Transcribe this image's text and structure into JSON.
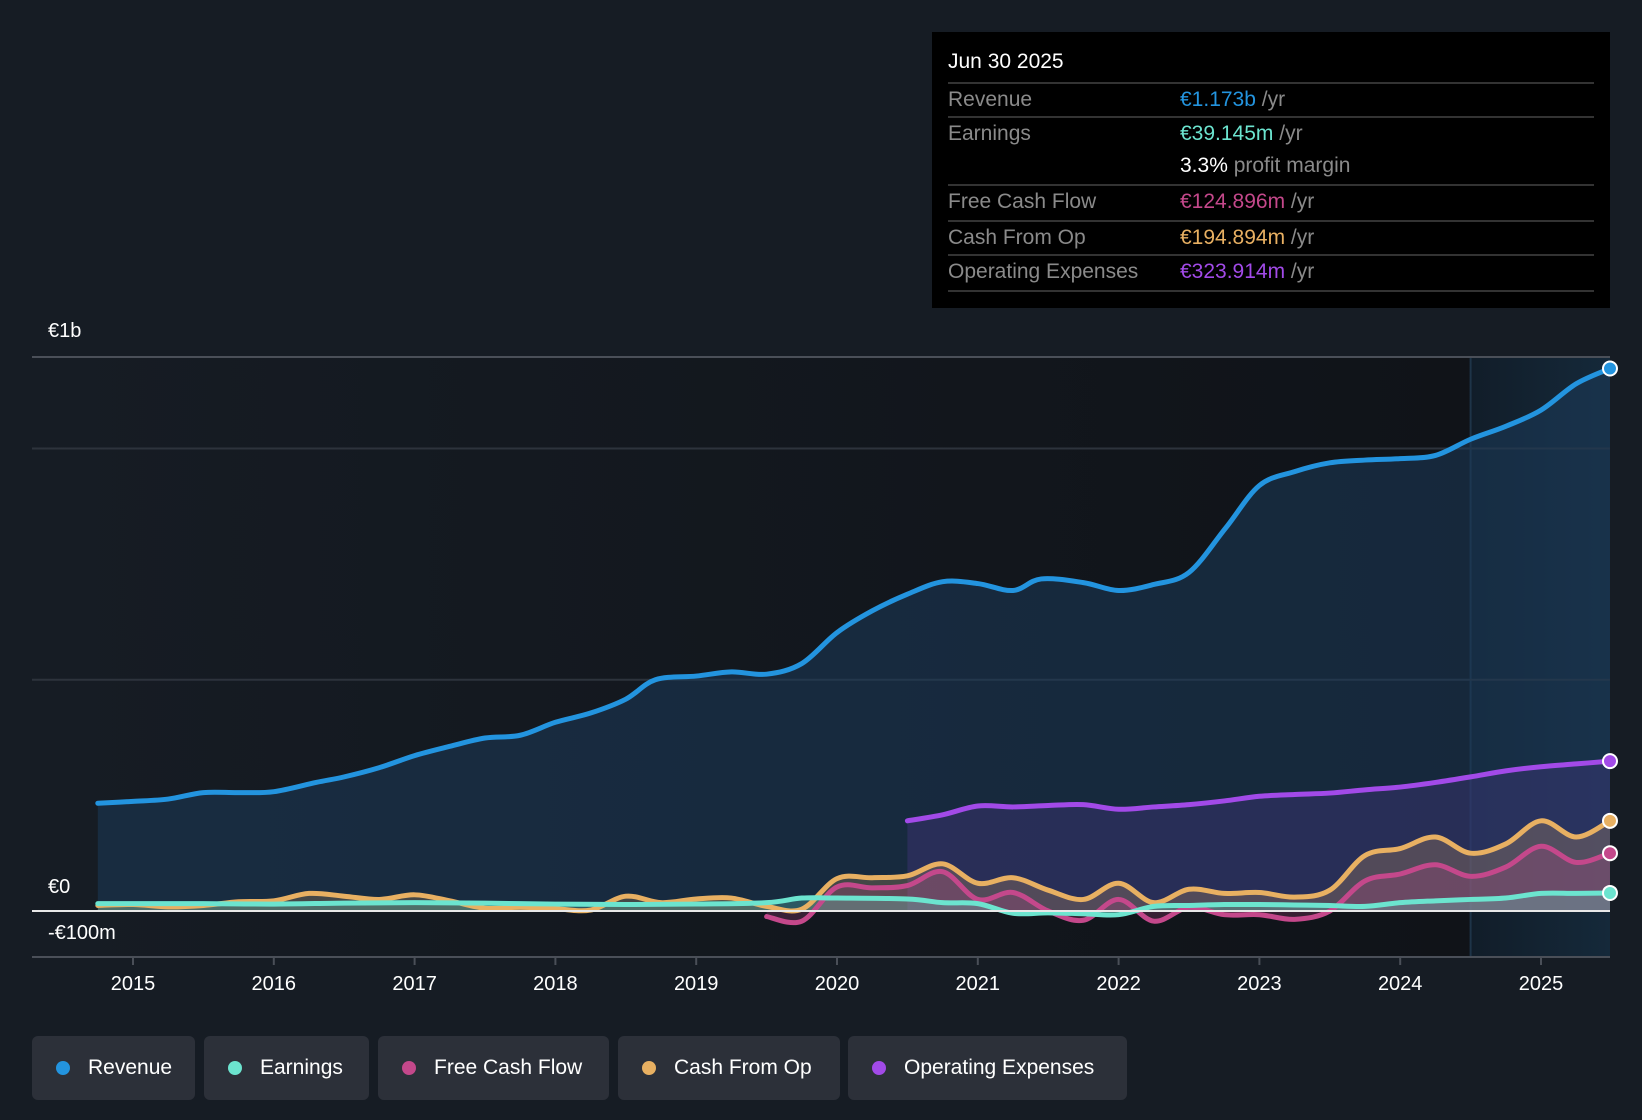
{
  "tooltip": {
    "date": "Jun 30 2025",
    "rows": [
      {
        "label": "Revenue",
        "value": "€1.173b",
        "unit": " /yr",
        "color": "#2394df"
      },
      {
        "label": "Earnings",
        "value": "€39.145m",
        "unit": " /yr",
        "color": "#6ce4cf"
      },
      {
        "label": "",
        "value": "3.3%",
        "unit": " profit margin",
        "color": "#ffffff"
      },
      {
        "label": "Free Cash Flow",
        "value": "€124.896m",
        "unit": " /yr",
        "color": "#c4488b"
      },
      {
        "label": "Cash From Op",
        "value": "€194.894m",
        "unit": " /yr",
        "color": "#e8b062"
      },
      {
        "label": "Operating Expenses",
        "value": "€323.914m",
        "unit": " /yr",
        "color": "#a24ae8"
      }
    ]
  },
  "legend": [
    {
      "label": "Revenue",
      "color": "#2394df"
    },
    {
      "label": "Earnings",
      "color": "#6ce4cf"
    },
    {
      "label": "Free Cash Flow",
      "color": "#c4488b"
    },
    {
      "label": "Cash From Op",
      "color": "#e8b062"
    },
    {
      "label": "Operating Expenses",
      "color": "#a24ae8"
    }
  ],
  "chart_data": {
    "type": "area",
    "title": "",
    "xlabel": "",
    "ylabel": "",
    "y_unit": "€m",
    "ylim": [
      -100,
      1200
    ],
    "xlim": [
      2014.5,
      2025.5
    ],
    "y_tick_labels": [
      {
        "value": 1000,
        "label": "€1b"
      },
      {
        "value": 0,
        "label": "€0"
      },
      {
        "value": -100,
        "label": "-€100m"
      }
    ],
    "x_ticks": [
      2015,
      2016,
      2017,
      2018,
      2019,
      2020,
      2021,
      2022,
      2023,
      2024,
      2025
    ],
    "x_tick_labels": [
      "2015",
      "2016",
      "2017",
      "2018",
      "2019",
      "2020",
      "2021",
      "2022",
      "2023",
      "2024",
      "2025"
    ],
    "gridlines": [
      0,
      500,
      1000,
      1200
    ],
    "highlight_from": 2024.5,
    "legend_position": "bottom",
    "series": [
      {
        "name": "Revenue",
        "color": "#2394df",
        "fill": true,
        "points": [
          [
            2014.75,
            233
          ],
          [
            2015.0,
            237
          ],
          [
            2015.25,
            242
          ],
          [
            2015.5,
            256
          ],
          [
            2015.75,
            256
          ],
          [
            2016.0,
            258
          ],
          [
            2016.3,
            278
          ],
          [
            2016.5,
            290
          ],
          [
            2016.75,
            310
          ],
          [
            2017.0,
            336
          ],
          [
            2017.25,
            356
          ],
          [
            2017.5,
            374
          ],
          [
            2017.75,
            380
          ],
          [
            2018.0,
            408
          ],
          [
            2018.25,
            428
          ],
          [
            2018.5,
            458
          ],
          [
            2018.71,
            500
          ],
          [
            2019.0,
            508
          ],
          [
            2019.25,
            517
          ],
          [
            2019.5,
            512
          ],
          [
            2019.75,
            535
          ],
          [
            2020.0,
            602
          ],
          [
            2020.25,
            649
          ],
          [
            2020.5,
            685
          ],
          [
            2020.75,
            712
          ],
          [
            2021.0,
            708
          ],
          [
            2021.25,
            693
          ],
          [
            2021.45,
            718
          ],
          [
            2021.75,
            710
          ],
          [
            2022.0,
            693
          ],
          [
            2022.25,
            706
          ],
          [
            2022.5,
            732
          ],
          [
            2022.76,
            828
          ],
          [
            2023.0,
            920
          ],
          [
            2023.25,
            950
          ],
          [
            2023.5,
            969
          ],
          [
            2023.75,
            975
          ],
          [
            2024.0,
            978
          ],
          [
            2024.25,
            985
          ],
          [
            2024.5,
            1020
          ],
          [
            2024.75,
            1048
          ],
          [
            2025.0,
            1083
          ],
          [
            2025.25,
            1140
          ],
          [
            2025.49,
            1173
          ]
        ]
      },
      {
        "name": "Operating Expenses",
        "color": "#a24ae8",
        "fill": true,
        "points": [
          [
            2020.5,
            195
          ],
          [
            2020.75,
            208
          ],
          [
            2021.0,
            227
          ],
          [
            2021.25,
            225
          ],
          [
            2021.5,
            228
          ],
          [
            2021.75,
            230
          ],
          [
            2022.0,
            220
          ],
          [
            2022.25,
            225
          ],
          [
            2022.5,
            230
          ],
          [
            2022.75,
            238
          ],
          [
            2023.0,
            248
          ],
          [
            2023.25,
            252
          ],
          [
            2023.5,
            255
          ],
          [
            2023.75,
            262
          ],
          [
            2024.0,
            268
          ],
          [
            2024.25,
            278
          ],
          [
            2024.5,
            290
          ],
          [
            2024.75,
            303
          ],
          [
            2025.0,
            312
          ],
          [
            2025.25,
            318
          ],
          [
            2025.49,
            324
          ]
        ]
      },
      {
        "name": "Cash From Op",
        "color": "#e8b062",
        "fill": true,
        "points": [
          [
            2014.75,
            12
          ],
          [
            2015.0,
            14
          ],
          [
            2015.25,
            9
          ],
          [
            2015.5,
            12
          ],
          [
            2015.75,
            20
          ],
          [
            2016.0,
            22
          ],
          [
            2016.25,
            38
          ],
          [
            2016.5,
            32
          ],
          [
            2016.75,
            25
          ],
          [
            2017.0,
            35
          ],
          [
            2017.25,
            22
          ],
          [
            2017.5,
            6
          ],
          [
            2017.75,
            8
          ],
          [
            2018.0,
            5
          ],
          [
            2018.25,
            2
          ],
          [
            2018.5,
            32
          ],
          [
            2018.75,
            18
          ],
          [
            2019.0,
            26
          ],
          [
            2019.25,
            28
          ],
          [
            2019.5,
            10
          ],
          [
            2019.75,
            4
          ],
          [
            2020.0,
            70
          ],
          [
            2020.25,
            72
          ],
          [
            2020.5,
            76
          ],
          [
            2020.75,
            102
          ],
          [
            2021.0,
            60
          ],
          [
            2021.25,
            72
          ],
          [
            2021.5,
            45
          ],
          [
            2021.75,
            25
          ],
          [
            2022.0,
            60
          ],
          [
            2022.25,
            18
          ],
          [
            2022.5,
            47
          ],
          [
            2022.75,
            38
          ],
          [
            2023.0,
            40
          ],
          [
            2023.25,
            30
          ],
          [
            2023.5,
            45
          ],
          [
            2023.75,
            120
          ],
          [
            2024.0,
            135
          ],
          [
            2024.25,
            160
          ],
          [
            2024.5,
            125
          ],
          [
            2024.75,
            145
          ],
          [
            2025.0,
            195
          ],
          [
            2025.25,
            160
          ],
          [
            2025.49,
            195
          ]
        ]
      },
      {
        "name": "Free Cash Flow",
        "color": "#c4488b",
        "fill": true,
        "points": [
          [
            2019.5,
            -12
          ],
          [
            2019.75,
            -22
          ],
          [
            2020.0,
            52
          ],
          [
            2020.25,
            50
          ],
          [
            2020.5,
            55
          ],
          [
            2020.75,
            85
          ],
          [
            2021.0,
            25
          ],
          [
            2021.25,
            40
          ],
          [
            2021.5,
            0
          ],
          [
            2021.75,
            -20
          ],
          [
            2022.0,
            25
          ],
          [
            2022.25,
            -22
          ],
          [
            2022.5,
            8
          ],
          [
            2022.75,
            -8
          ],
          [
            2023.0,
            -8
          ],
          [
            2023.25,
            -18
          ],
          [
            2023.5,
            0
          ],
          [
            2023.75,
            65
          ],
          [
            2024.0,
            80
          ],
          [
            2024.25,
            100
          ],
          [
            2024.5,
            75
          ],
          [
            2024.75,
            95
          ],
          [
            2025.0,
            140
          ],
          [
            2025.25,
            105
          ],
          [
            2025.49,
            125
          ]
        ]
      },
      {
        "name": "Earnings",
        "color": "#6ce4cf",
        "fill": true,
        "points": [
          [
            2014.75,
            16
          ],
          [
            2015.0,
            16
          ],
          [
            2015.5,
            16
          ],
          [
            2016.0,
            15
          ],
          [
            2016.5,
            17
          ],
          [
            2017.0,
            18
          ],
          [
            2017.5,
            17
          ],
          [
            2018.0,
            15
          ],
          [
            2018.5,
            14
          ],
          [
            2019.0,
            15
          ],
          [
            2019.5,
            18
          ],
          [
            2019.75,
            28
          ],
          [
            2020.0,
            28
          ],
          [
            2020.5,
            26
          ],
          [
            2020.75,
            18
          ],
          [
            2021.0,
            16
          ],
          [
            2021.25,
            -5
          ],
          [
            2021.5,
            -4
          ],
          [
            2021.75,
            -6
          ],
          [
            2022.0,
            -8
          ],
          [
            2022.25,
            10
          ],
          [
            2022.5,
            12
          ],
          [
            2022.75,
            14
          ],
          [
            2023.0,
            14
          ],
          [
            2023.25,
            13
          ],
          [
            2023.5,
            12
          ],
          [
            2023.75,
            10
          ],
          [
            2024.0,
            18
          ],
          [
            2024.25,
            22
          ],
          [
            2024.5,
            25
          ],
          [
            2024.75,
            28
          ],
          [
            2025.0,
            38
          ],
          [
            2025.25,
            38
          ],
          [
            2025.49,
            39
          ]
        ]
      }
    ]
  }
}
